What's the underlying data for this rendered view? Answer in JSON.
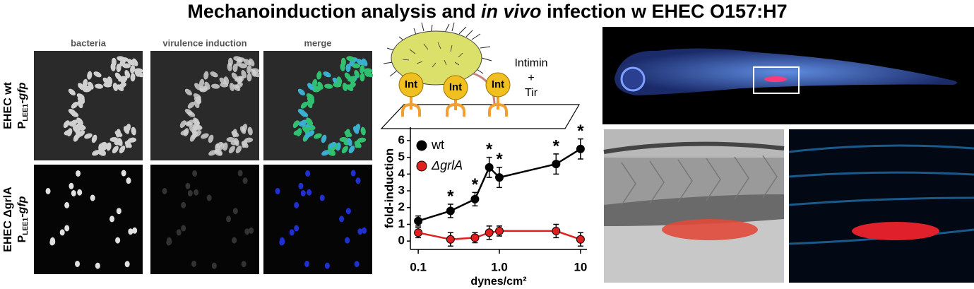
{
  "title_parts": [
    "Mechanoinduction analysis and ",
    "in vivo",
    " infection w EHEC O157:H7"
  ],
  "microscopy": {
    "columns": [
      "bacteria",
      "virulence induction",
      "merge"
    ],
    "rows": [
      {
        "strain": "EHEC wt",
        "promoter": "P",
        "promoter_sub": "LEE1",
        "reporter": "-gfp"
      },
      {
        "strain": "EHEC ΔgrlA",
        "promoter": "P",
        "promoter_sub": "LEE1",
        "reporter": "-gfp"
      }
    ]
  },
  "diagram": {
    "int_label": "Int",
    "label_lines": [
      "Intimin",
      "+",
      "Tir"
    ]
  },
  "chart_data": {
    "type": "line",
    "x_label": "dynes/cm²",
    "y_label": "fold-induction",
    "x": [
      0.1,
      0.25,
      0.5,
      0.75,
      1.0,
      5,
      10
    ],
    "xlim": [
      0.08,
      12
    ],
    "xticks": [
      0.1,
      {
        "value": 1,
        "label": "1.0"
      },
      10
    ],
    "log_x": true,
    "ylim": [
      -0.5,
      6.8
    ],
    "yticks": [
      0,
      1,
      2,
      3,
      4,
      5,
      6
    ],
    "legend": "upper left",
    "series": [
      {
        "name": "wt",
        "color": "#000000",
        "values": [
          1.2,
          1.8,
          2.5,
          4.4,
          3.8,
          4.6,
          5.5
        ],
        "errors": [
          0.3,
          0.4,
          0.4,
          0.6,
          0.6,
          0.6,
          0.6
        ]
      },
      {
        "name": "ΔgrlA",
        "color": "#e02020",
        "values": [
          0.5,
          0.1,
          0.2,
          0.5,
          0.6,
          0.6,
          0.1
        ],
        "errors": [
          0.3,
          0.4,
          0.3,
          0.4,
          0.3,
          0.4,
          0.4
        ]
      }
    ],
    "significant": [
      false,
      true,
      true,
      true,
      true,
      true,
      true
    ],
    "significance_label": "*"
  }
}
